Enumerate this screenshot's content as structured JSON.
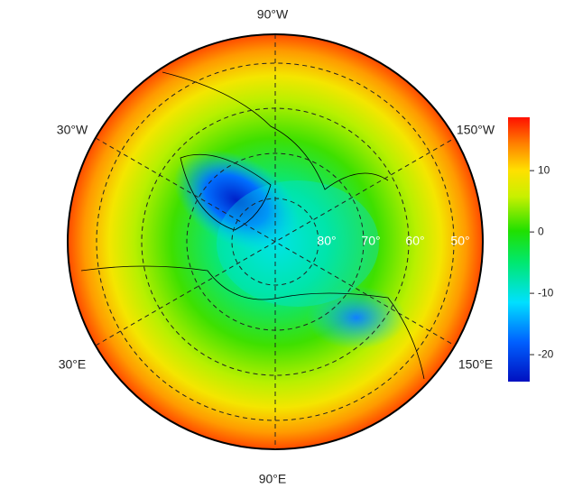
{
  "map": {
    "longitude_labels": [
      "90°W",
      "150°W",
      "150°E",
      "90°E",
      "30°E",
      "30°W"
    ],
    "latitude_labels": [
      "80°",
      "70°",
      "60°",
      "50°"
    ],
    "colorbar": {
      "lim": [
        -24.4,
        18.7
      ],
      "ticks": [
        -20,
        -10,
        0,
        10
      ]
    }
  }
}
